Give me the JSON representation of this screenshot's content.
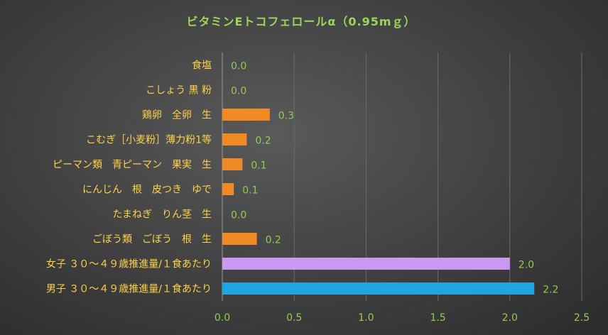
{
  "chart_data": {
    "type": "bar",
    "orientation": "horizontal",
    "title": "ビタミンEトコフェロールα（0.95mｇ）",
    "categories": [
      "食塩",
      "こしょう 黒 粉",
      "鶏卵　全卵　生",
      "こむぎ［小麦粉］薄力粉1等",
      "ピーマン類　青ピーマン　果実　生",
      "にんじん　根　皮つき　ゆで",
      "たまねぎ　りん茎　生",
      "ごぼう類　ごぼう　根　生",
      "女子 ３０～４９歳推進量/１食あたり",
      "男子 ３０～４９歳推進量/１食あたり"
    ],
    "values": [
      0.0,
      0.0,
      0.3,
      0.2,
      0.1,
      0.1,
      0.0,
      0.2,
      2.0,
      2.2
    ],
    "bar_values_exact": [
      0.0,
      0.0,
      0.33,
      0.17,
      0.14,
      0.08,
      0.0,
      0.24,
      2.0,
      2.17
    ],
    "data_labels": [
      "0.0",
      "0.0",
      "0.3",
      "0.2",
      "0.1",
      "0.1",
      "0.0",
      "0.2",
      "2.0",
      "2.2"
    ],
    "bar_colors": [
      "#f08a24",
      "#f08a24",
      "#f08a24",
      "#f08a24",
      "#f08a24",
      "#f08a24",
      "#f08a24",
      "#f08a24",
      "#c99af0",
      "#1fa6e0"
    ],
    "xlim": [
      0,
      2.5
    ],
    "xticks": [
      "0.0",
      "0.5",
      "1.0",
      "1.5",
      "2.0",
      "2.5"
    ],
    "grid": true,
    "legend": "none",
    "xlabel": "",
    "ylabel": ""
  }
}
